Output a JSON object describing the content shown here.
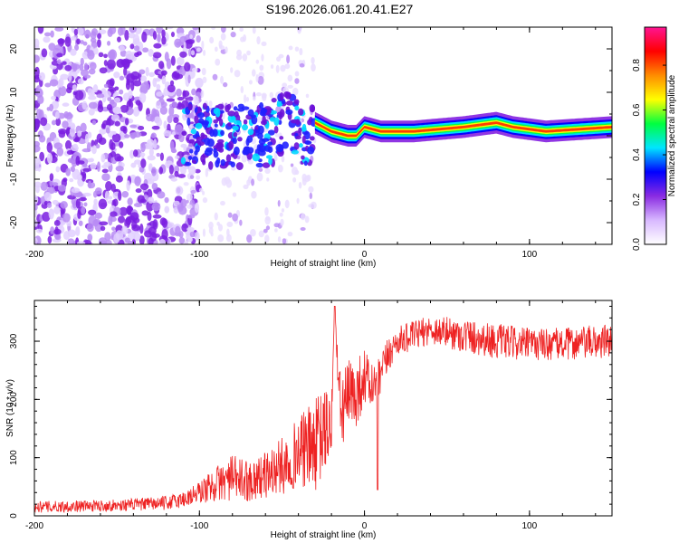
{
  "title": "S196.2026.061.20.41.E27",
  "chart_data": [
    {
      "type": "heatmap",
      "xlabel": "Height of straight line (km)",
      "ylabel": "Frequency (Hz)",
      "xlim": [
        -200,
        150
      ],
      "ylim": [
        -25,
        25
      ],
      "xticks": [
        -200,
        -100,
        0,
        100
      ],
      "yticks": [
        -20,
        -10,
        0,
        10,
        20
      ],
      "colorbar": {
        "label": "Normalized spectral amplitude",
        "range": [
          0,
          0.97
        ],
        "ticks": [
          0.0,
          0.2,
          0.4,
          0.6,
          0.8
        ],
        "colors": [
          "#ffffff",
          "#d8b8ff",
          "#8a2be2",
          "#0000ff",
          "#00e5ff",
          "#00ff40",
          "#ffff00",
          "#ff8c00",
          "#ff0000",
          "#ff1493"
        ]
      },
      "features": [
        {
          "name": "noise-region",
          "x_range": [
            -200,
            -110
          ],
          "amplitude": 0.1
        },
        {
          "name": "scattered-region",
          "x_range": [
            -110,
            -30
          ],
          "freq_range": [
            -12,
            10
          ],
          "amplitude": 0.25
        },
        {
          "name": "carrier",
          "x_range": [
            -30,
            150
          ],
          "freq": [
            {
              "x": -30,
              "y": 3
            },
            {
              "x": -20,
              "y": 1
            },
            {
              "x": -10,
              "y": 0
            },
            {
              "x": -5,
              "y": 0
            },
            {
              "x": 0,
              "y": 2
            },
            {
              "x": 10,
              "y": 1
            },
            {
              "x": 30,
              "y": 1
            },
            {
              "x": 60,
              "y": 2
            },
            {
              "x": 80,
              "y": 3
            },
            {
              "x": 90,
              "y": 2
            },
            {
              "x": 110,
              "y": 1
            },
            {
              "x": 150,
              "y": 2
            }
          ],
          "amplitude": 0.9
        }
      ]
    },
    {
      "type": "line",
      "xlabel": "Height of straight line (km)",
      "ylabel": "SNR (10 * v/v)",
      "xlim": [
        -200,
        150
      ],
      "ylim": [
        0,
        370
      ],
      "xticks": [
        -200,
        -100,
        0,
        100
      ],
      "yticks": [
        0,
        100,
        200,
        300
      ],
      "color": "#ee2222",
      "series": [
        {
          "name": "SNR",
          "x": [
            -200,
            -150,
            -120,
            -110,
            -100,
            -90,
            -80,
            -70,
            -60,
            -50,
            -40,
            -30,
            -25,
            -20,
            -18,
            -15,
            -10,
            -5,
            0,
            5,
            10,
            15,
            20,
            30,
            40,
            60,
            80,
            100,
            120,
            150
          ],
          "y": [
            15,
            18,
            22,
            28,
            40,
            55,
            65,
            60,
            70,
            85,
            110,
            120,
            140,
            160,
            360,
            180,
            200,
            210,
            240,
            220,
            240,
            280,
            300,
            310,
            320,
            310,
            300,
            295,
            295,
            300
          ],
          "noise": [
            10,
            10,
            12,
            15,
            20,
            30,
            40,
            35,
            40,
            50,
            60,
            80,
            80,
            60,
            0,
            70,
            70,
            60,
            50,
            40,
            40,
            30,
            25,
            25,
            25,
            30,
            30,
            28,
            28,
            30
          ]
        }
      ]
    }
  ]
}
